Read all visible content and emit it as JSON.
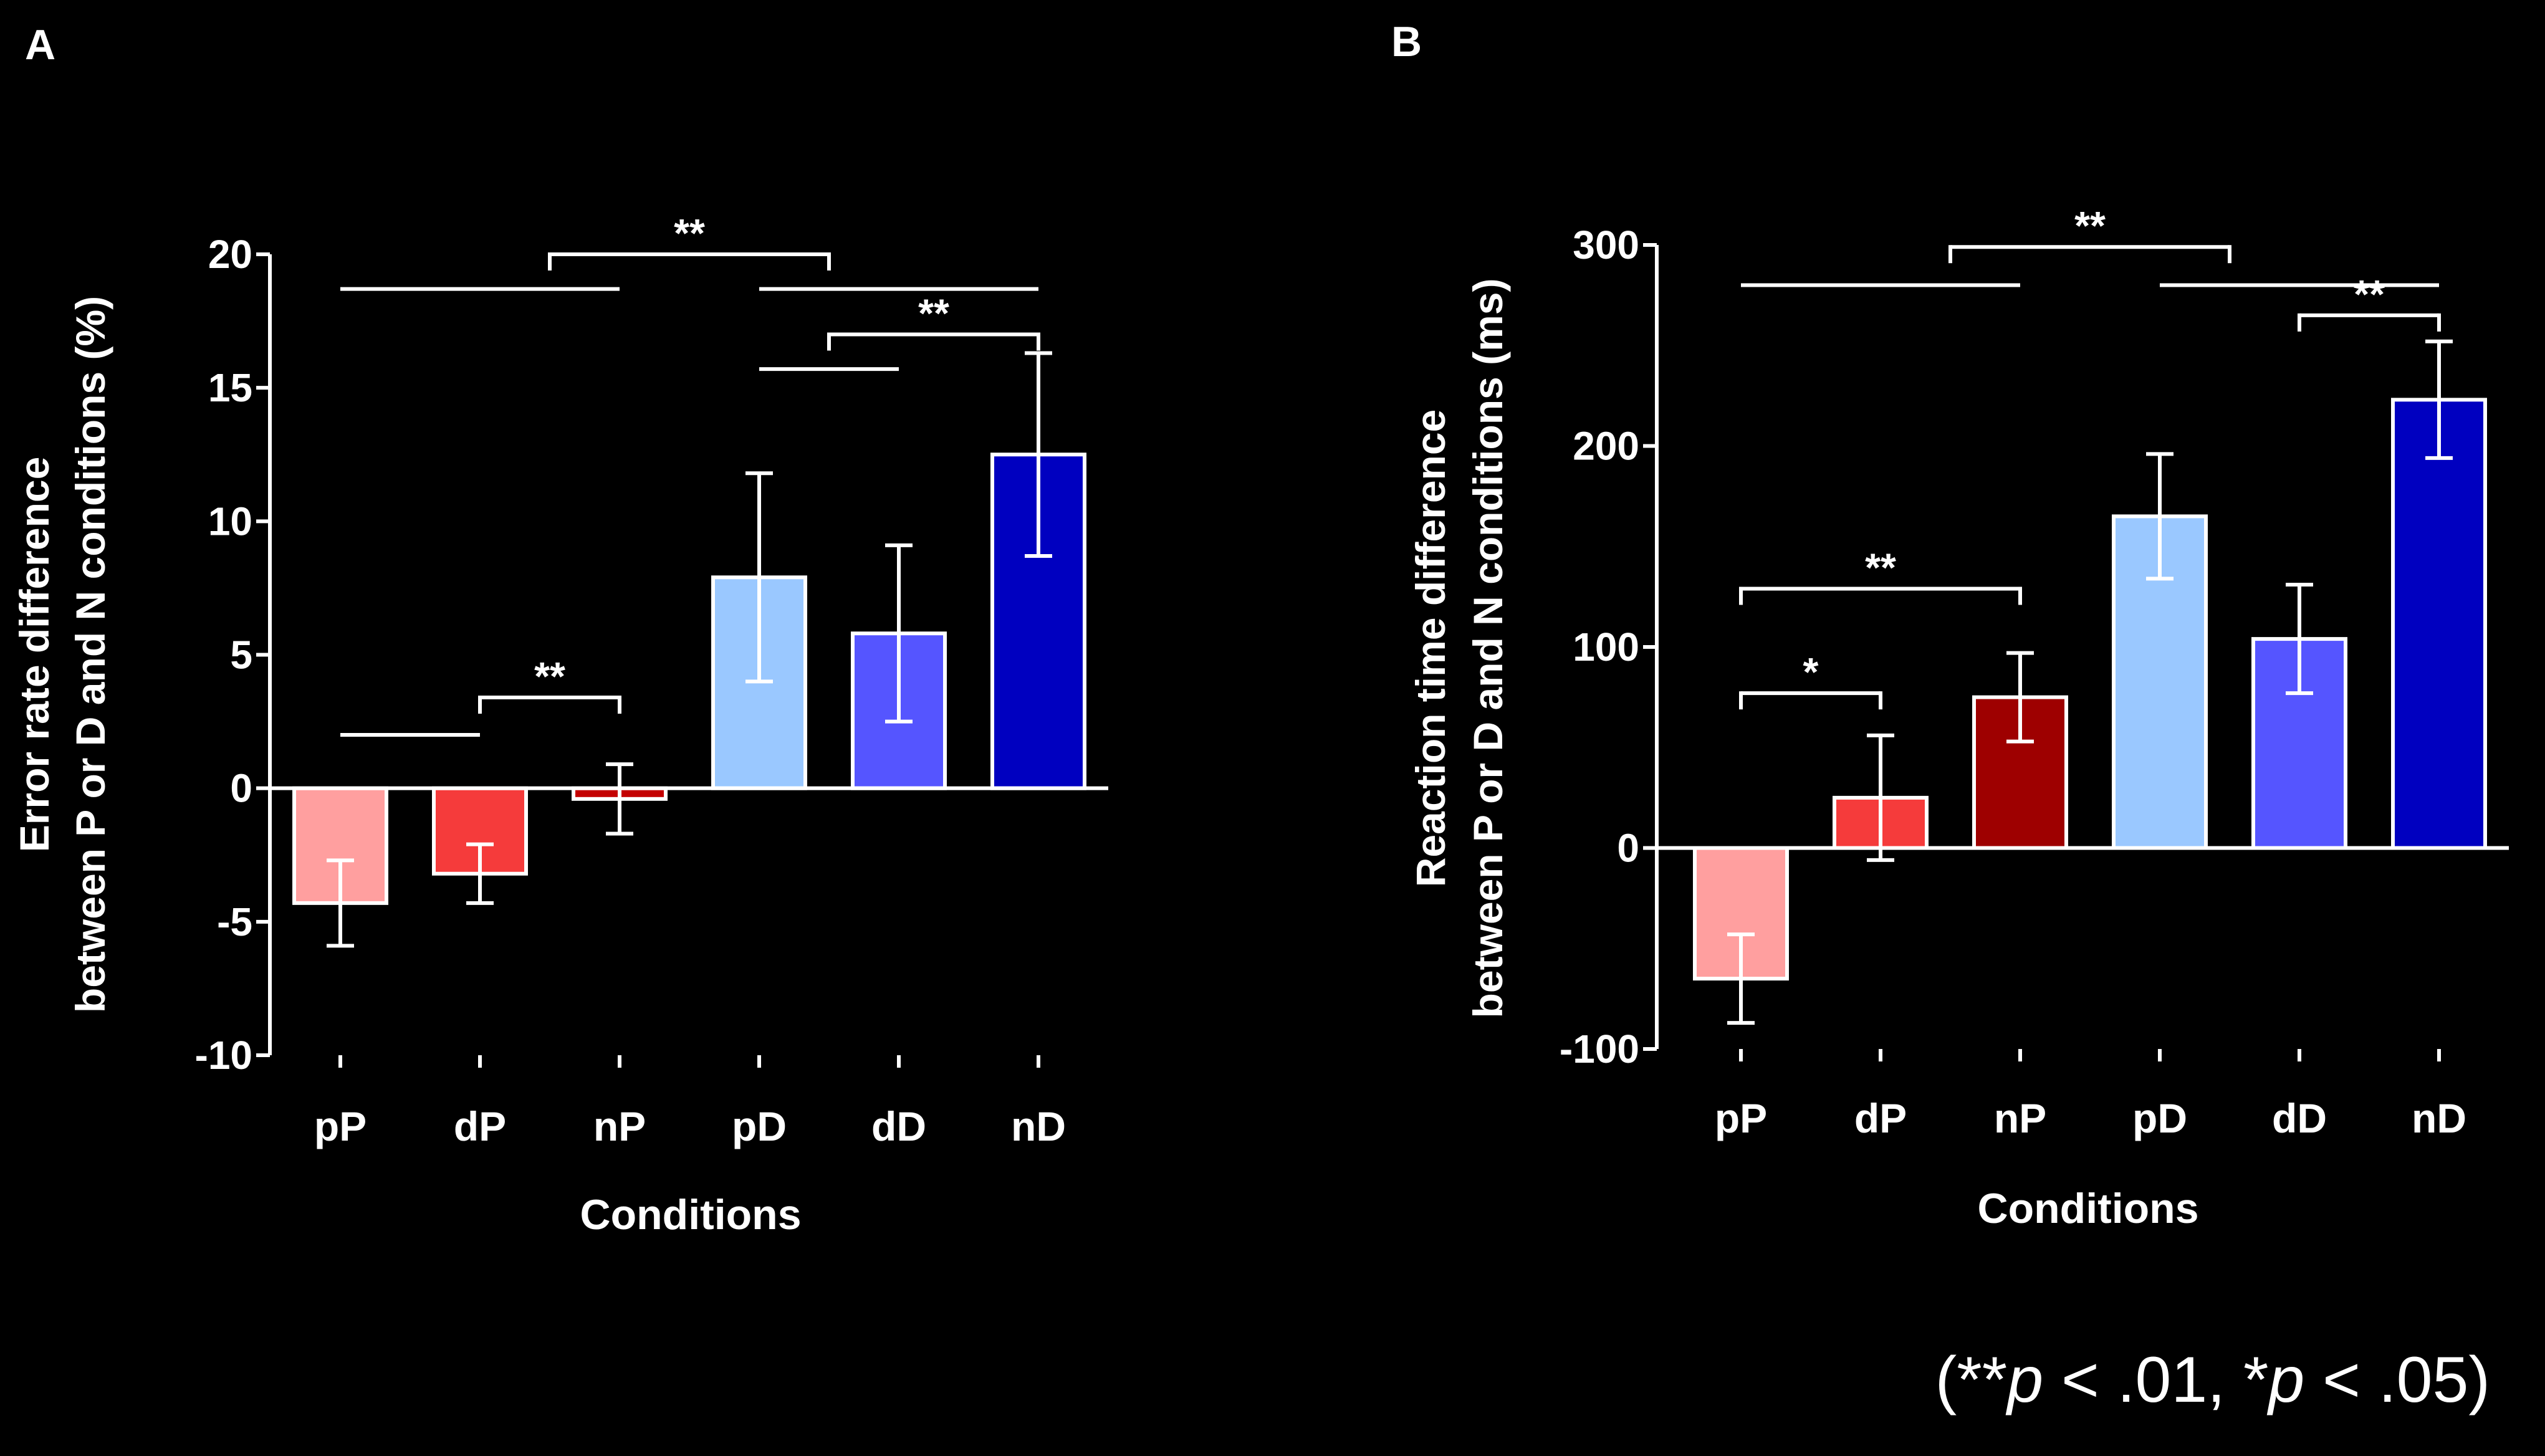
{
  "footnote": {
    "open": "(**",
    "p1": "p",
    "mid": " < .01, *",
    "p2": "p",
    "close": " < .05)"
  },
  "chart_data": [
    {
      "panel_label": "A",
      "type": "bar",
      "title": "",
      "xlabel": "Conditions",
      "ylabel_lines": [
        "Error rate difference",
        "between P or D and N conditions (%)"
      ],
      "ylim": [
        -10,
        20
      ],
      "yticks": [
        -10,
        -5,
        0,
        5,
        10,
        15,
        20
      ],
      "categories": [
        "pP",
        "dP",
        "nP",
        "pD",
        "dD",
        "nD"
      ],
      "values": [
        -4.3,
        -3.2,
        -0.4,
        7.9,
        5.8,
        12.5
      ],
      "errors": [
        1.6,
        1.1,
        1.3,
        3.9,
        3.3,
        3.8
      ],
      "colors": [
        "#ff9f9f",
        "#f53b3b",
        "#c40000",
        "#9ac8ff",
        "#5555ff",
        "#0000c0"
      ],
      "annotations": [
        {
          "from": 0,
          "to": 1,
          "y": 2.0,
          "label": "",
          "ticks": false
        },
        {
          "from": 1,
          "to": 2,
          "y": 3.4,
          "label": "**",
          "ticks": true
        },
        {
          "from": 0,
          "to": 2,
          "y": 18.7,
          "label": "",
          "ticks": false
        },
        {
          "from": 1.5,
          "to": 3.5,
          "y": 20.0,
          "label": "**",
          "ticks": true
        },
        {
          "from": 3,
          "to": 5,
          "y": 18.7,
          "label": "",
          "ticks": false
        },
        {
          "from": 3,
          "to": 4,
          "y": 15.7,
          "label": "",
          "ticks": false
        },
        {
          "from": 3.5,
          "to": 5,
          "y": 17.0,
          "label": "**",
          "ticks": true
        }
      ]
    },
    {
      "panel_label": "B",
      "type": "bar",
      "title": "",
      "xlabel": "Conditions",
      "ylabel_lines": [
        "Reaction time difference",
        "between P or D and N conditions (ms)"
      ],
      "ylim": [
        -100,
        300
      ],
      "yticks": [
        -100,
        0,
        100,
        200,
        300
      ],
      "categories": [
        "pP",
        "dP",
        "nP",
        "pD",
        "dD",
        "nD"
      ],
      "values": [
        -65,
        25,
        75,
        165,
        104,
        223
      ],
      "errors": [
        22,
        31,
        22,
        31,
        27,
        29
      ],
      "colors": [
        "#ff9f9f",
        "#f53b3b",
        "#9e0000",
        "#9ac8ff",
        "#5555ff",
        "#0000c0"
      ],
      "annotations": [
        {
          "from": 0,
          "to": 1,
          "y": 77,
          "label": "*",
          "ticks": true
        },
        {
          "from": 0,
          "to": 2,
          "y": 129,
          "label": "**",
          "ticks": true
        },
        {
          "from": 0,
          "to": 2,
          "y": 280,
          "label": "",
          "ticks": false
        },
        {
          "from": 1.5,
          "to": 3.5,
          "y": 299,
          "label": "**",
          "ticks": true
        },
        {
          "from": 3,
          "to": 5,
          "y": 280,
          "label": "",
          "ticks": false
        },
        {
          "from": 4,
          "to": 5,
          "y": 265,
          "label": "**",
          "ticks": true
        }
      ]
    }
  ]
}
